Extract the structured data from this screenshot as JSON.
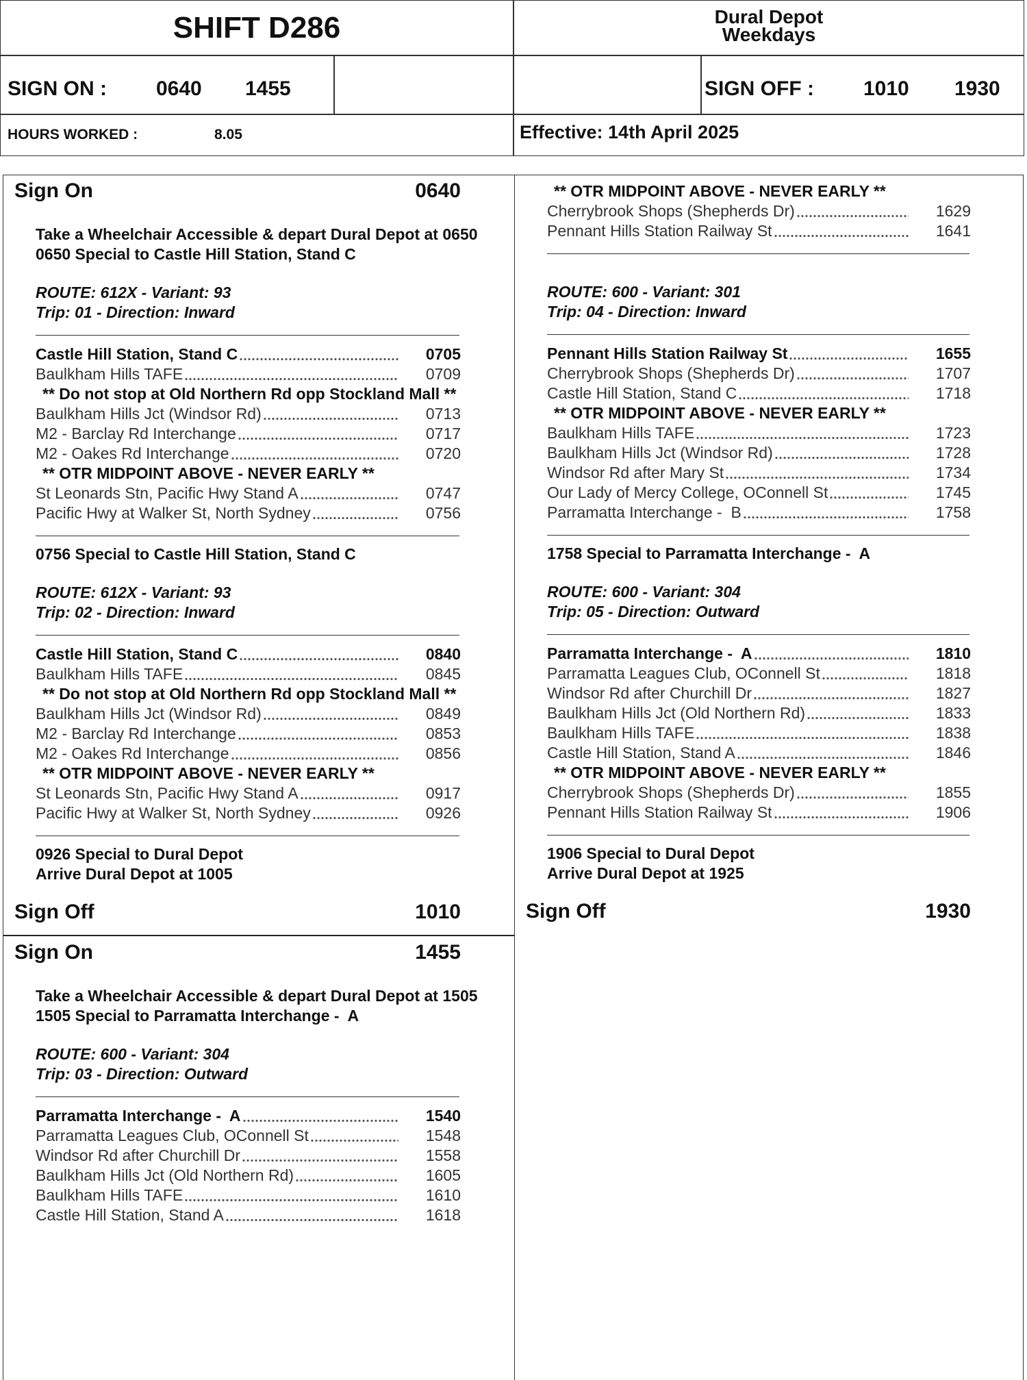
{
  "header": {
    "title": "SHIFT D286",
    "depot": "Dural Depot",
    "days": "Weekdays",
    "sign_on_label": "SIGN ON :",
    "sign_on_times": [
      "0640",
      "1455"
    ],
    "sign_off_label": "SIGN OFF :",
    "sign_off_times": [
      "1010",
      "1930"
    ],
    "hours_label": "HOURS WORKED :",
    "hours": "8.05",
    "effective": "Effective: 14th April 2025"
  },
  "columns": {
    "left": [
      {
        "heading": {
          "label": "Sign On",
          "time": "0640"
        }
      },
      {
        "instruction": [
          "Take a Wheelchair Accessible & depart Dural Depot at 0650",
          "0650 Special to Castle Hill Station, Stand C"
        ]
      },
      {
        "route": [
          "ROUTE: 612X - Variant: 93",
          "Trip: 01 - Direction: Inward"
        ]
      },
      {
        "stops": [
          {
            "stop": "Castle Hill Station, Stand C",
            "time": "0705"
          },
          {
            "stop": "Baulkham Hills TAFE",
            "time": "0709"
          },
          {
            "note": "** Do not stop at Old Northern Rd opp Stockland Mall **"
          },
          {
            "stop": "Baulkham Hills Jct (Windsor Rd)",
            "time": "0713"
          },
          {
            "stop": "M2 - Barclay Rd Interchange",
            "time": "0717"
          },
          {
            "stop": "M2 - Oakes Rd Interchange",
            "time": "0720"
          },
          {
            "note": "** OTR MIDPOINT ABOVE - NEVER EARLY **"
          },
          {
            "stop": "St Leonards Stn, Pacific Hwy Stand A",
            "time": "0747"
          },
          {
            "stop": "Pacific Hwy at Walker St, North Sydney",
            "time": "0756"
          }
        ]
      },
      {
        "instruction": [
          "0756 Special to Castle Hill Station, Stand C"
        ]
      },
      {
        "route": [
          "ROUTE: 612X - Variant: 93",
          "Trip: 02 - Direction: Inward"
        ]
      },
      {
        "stops": [
          {
            "stop": "Castle Hill Station, Stand C",
            "time": "0840"
          },
          {
            "stop": "Baulkham Hills TAFE",
            "time": "0845"
          },
          {
            "note": "** Do not stop at Old Northern Rd opp Stockland Mall **"
          },
          {
            "stop": "Baulkham Hills Jct (Windsor Rd)",
            "time": "0849"
          },
          {
            "stop": "M2 - Barclay Rd Interchange",
            "time": "0853"
          },
          {
            "stop": "M2 - Oakes Rd Interchange",
            "time": "0856"
          },
          {
            "note": "** OTR MIDPOINT ABOVE - NEVER EARLY **"
          },
          {
            "stop": "St Leonards Stn, Pacific Hwy Stand A",
            "time": "0917"
          },
          {
            "stop": "Pacific Hwy at Walker St, North Sydney",
            "time": "0926"
          }
        ]
      },
      {
        "instruction": [
          "0926 Special to Dural Depot",
          "Arrive Dural Depot at 1005"
        ]
      },
      {
        "heading": {
          "label": "Sign Off",
          "time": "1010"
        }
      },
      {
        "heading": {
          "label": "Sign On",
          "time": "1455"
        }
      },
      {
        "instruction": [
          "Take a Wheelchair Accessible & depart Dural Depot at 1505",
          "1505 Special to Parramatta Interchange -  A"
        ]
      },
      {
        "route": [
          "ROUTE: 600 - Variant: 304",
          "Trip: 03 - Direction: Outward"
        ]
      },
      {
        "stops": [
          {
            "stop": "Parramatta Interchange -  A",
            "time": "1540"
          },
          {
            "stop": "Parramatta Leagues Club, OConnell St",
            "time": "1548"
          },
          {
            "stop": "Windsor Rd after Churchill Dr",
            "time": "1558"
          },
          {
            "stop": "Baulkham Hills Jct (Old Northern Rd)",
            "time": "1605"
          },
          {
            "stop": "Baulkham Hills TAFE",
            "time": "1610"
          },
          {
            "stop": "Castle Hill Station, Stand A",
            "time": "1618"
          }
        ]
      }
    ],
    "right": [
      {
        "stops": [
          {
            "note": "** OTR MIDPOINT ABOVE - NEVER EARLY **"
          },
          {
            "stop": "Cherrybrook Shops (Shepherds Dr)",
            "time": "1629"
          },
          {
            "stop": "Pennant Hills Station Railway St",
            "time": "1641"
          }
        ]
      },
      {
        "route": [
          "ROUTE: 600 - Variant: 301",
          "Trip: 04 - Direction: Inward"
        ]
      },
      {
        "stops": [
          {
            "stop": "Pennant Hills Station Railway St",
            "time": "1655"
          },
          {
            "stop": "Cherrybrook Shops (Shepherds Dr)",
            "time": "1707"
          },
          {
            "stop": "Castle Hill Station, Stand C",
            "time": "1718"
          },
          {
            "note": "** OTR MIDPOINT ABOVE - NEVER EARLY **"
          },
          {
            "stop": "Baulkham Hills TAFE",
            "time": "1723"
          },
          {
            "stop": "Baulkham Hills Jct (Windsor Rd)",
            "time": "1728"
          },
          {
            "stop": "Windsor Rd after Mary St",
            "time": "1734"
          },
          {
            "stop": "Our Lady of Mercy College, OConnell St",
            "time": "1745"
          },
          {
            "stop": "Parramatta Interchange -  B",
            "time": "1758"
          }
        ]
      },
      {
        "instruction": [
          "1758 Special to Parramatta Interchange -  A"
        ]
      },
      {
        "route": [
          "ROUTE: 600 - Variant: 304",
          "Trip: 05 - Direction: Outward"
        ]
      },
      {
        "stops": [
          {
            "stop": "Parramatta Interchange -  A",
            "time": "1810"
          },
          {
            "stop": "Parramatta Leagues Club, OConnell St",
            "time": "1818"
          },
          {
            "stop": "Windsor Rd after Churchill Dr",
            "time": "1827"
          },
          {
            "stop": "Baulkham Hills Jct (Old Northern Rd)",
            "time": "1833"
          },
          {
            "stop": "Baulkham Hills TAFE",
            "time": "1838"
          },
          {
            "stop": "Castle Hill Station, Stand A",
            "time": "1846"
          },
          {
            "note": "** OTR MIDPOINT ABOVE - NEVER EARLY **"
          },
          {
            "stop": "Cherrybrook Shops (Shepherds Dr)",
            "time": "1855"
          },
          {
            "stop": "Pennant Hills Station Railway St",
            "time": "1906"
          }
        ]
      },
      {
        "instruction": [
          "1906 Special to Dural Depot",
          "Arrive Dural Depot at 1925"
        ]
      },
      {
        "heading": {
          "label": "Sign Off",
          "time": "1930"
        }
      }
    ]
  }
}
